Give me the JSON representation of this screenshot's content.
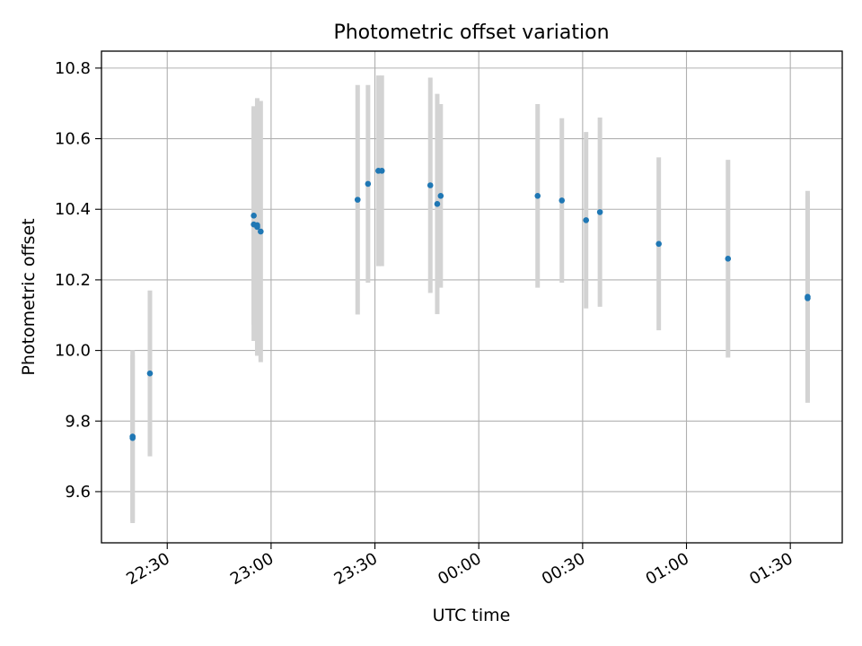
{
  "chart_data": {
    "type": "scatter",
    "title": "Photometric offset variation",
    "xlabel": "UTC time",
    "ylabel": "Photometric offset",
    "x_unit": "minutes after 00:00 UTC",
    "xlim": [
      "22:11",
      "01:45"
    ],
    "ylim": [
      9.455,
      10.848
    ],
    "x_ticks": [
      "22:30",
      "23:00",
      "23:30",
      "00:00",
      "00:30",
      "01:00",
      "01:30"
    ],
    "y_ticks": [
      "9.6",
      "9.8",
      "10.0",
      "10.2",
      "10.4",
      "10.6",
      "10.8"
    ],
    "grid": true,
    "series": [
      {
        "marker_color": "#1f77b4",
        "errorbar_color": "#d3d3d3",
        "points": [
          {
            "x": "22:20",
            "y": 9.756,
            "yerr": 0.245
          },
          {
            "x": "22:20",
            "y": 9.752,
            "yerr": 0.235
          },
          {
            "x": "22:25",
            "y": 9.935,
            "yerr": 0.235
          },
          {
            "x": "22:55",
            "y": 10.382,
            "yerr": 0.31
          },
          {
            "x": "22:55",
            "y": 10.357,
            "yerr": 0.33
          },
          {
            "x": "22:56",
            "y": 10.355,
            "yerr": 0.33
          },
          {
            "x": "22:56",
            "y": 10.35,
            "yerr": 0.365
          },
          {
            "x": "22:57",
            "y": 10.337,
            "yerr": 0.37
          },
          {
            "x": "23:25",
            "y": 10.427,
            "yerr": 0.325
          },
          {
            "x": "23:28",
            "y": 10.472,
            "yerr": 0.28
          },
          {
            "x": "23:31",
            "y": 10.509,
            "yerr": 0.27
          },
          {
            "x": "23:32",
            "y": 10.509,
            "yerr": 0.27
          },
          {
            "x": "23:46",
            "y": 10.468,
            "yerr": 0.305
          },
          {
            "x": "23:48",
            "y": 10.415,
            "yerr": 0.312
          },
          {
            "x": "23:49",
            "y": 10.438,
            "yerr": 0.26
          },
          {
            "x": "00:17",
            "y": 10.438,
            "yerr": 0.26
          },
          {
            "x": "00:24",
            "y": 10.425,
            "yerr": 0.233
          },
          {
            "x": "00:31",
            "y": 10.369,
            "yerr": 0.25
          },
          {
            "x": "00:35",
            "y": 10.392,
            "yerr": 0.268
          },
          {
            "x": "00:52",
            "y": 10.302,
            "yerr": 0.245
          },
          {
            "x": "01:12",
            "y": 10.26,
            "yerr": 0.28
          },
          {
            "x": "01:35",
            "y": 10.148,
            "yerr": 0.29
          },
          {
            "x": "01:35",
            "y": 10.152,
            "yerr": 0.3
          }
        ]
      }
    ]
  }
}
